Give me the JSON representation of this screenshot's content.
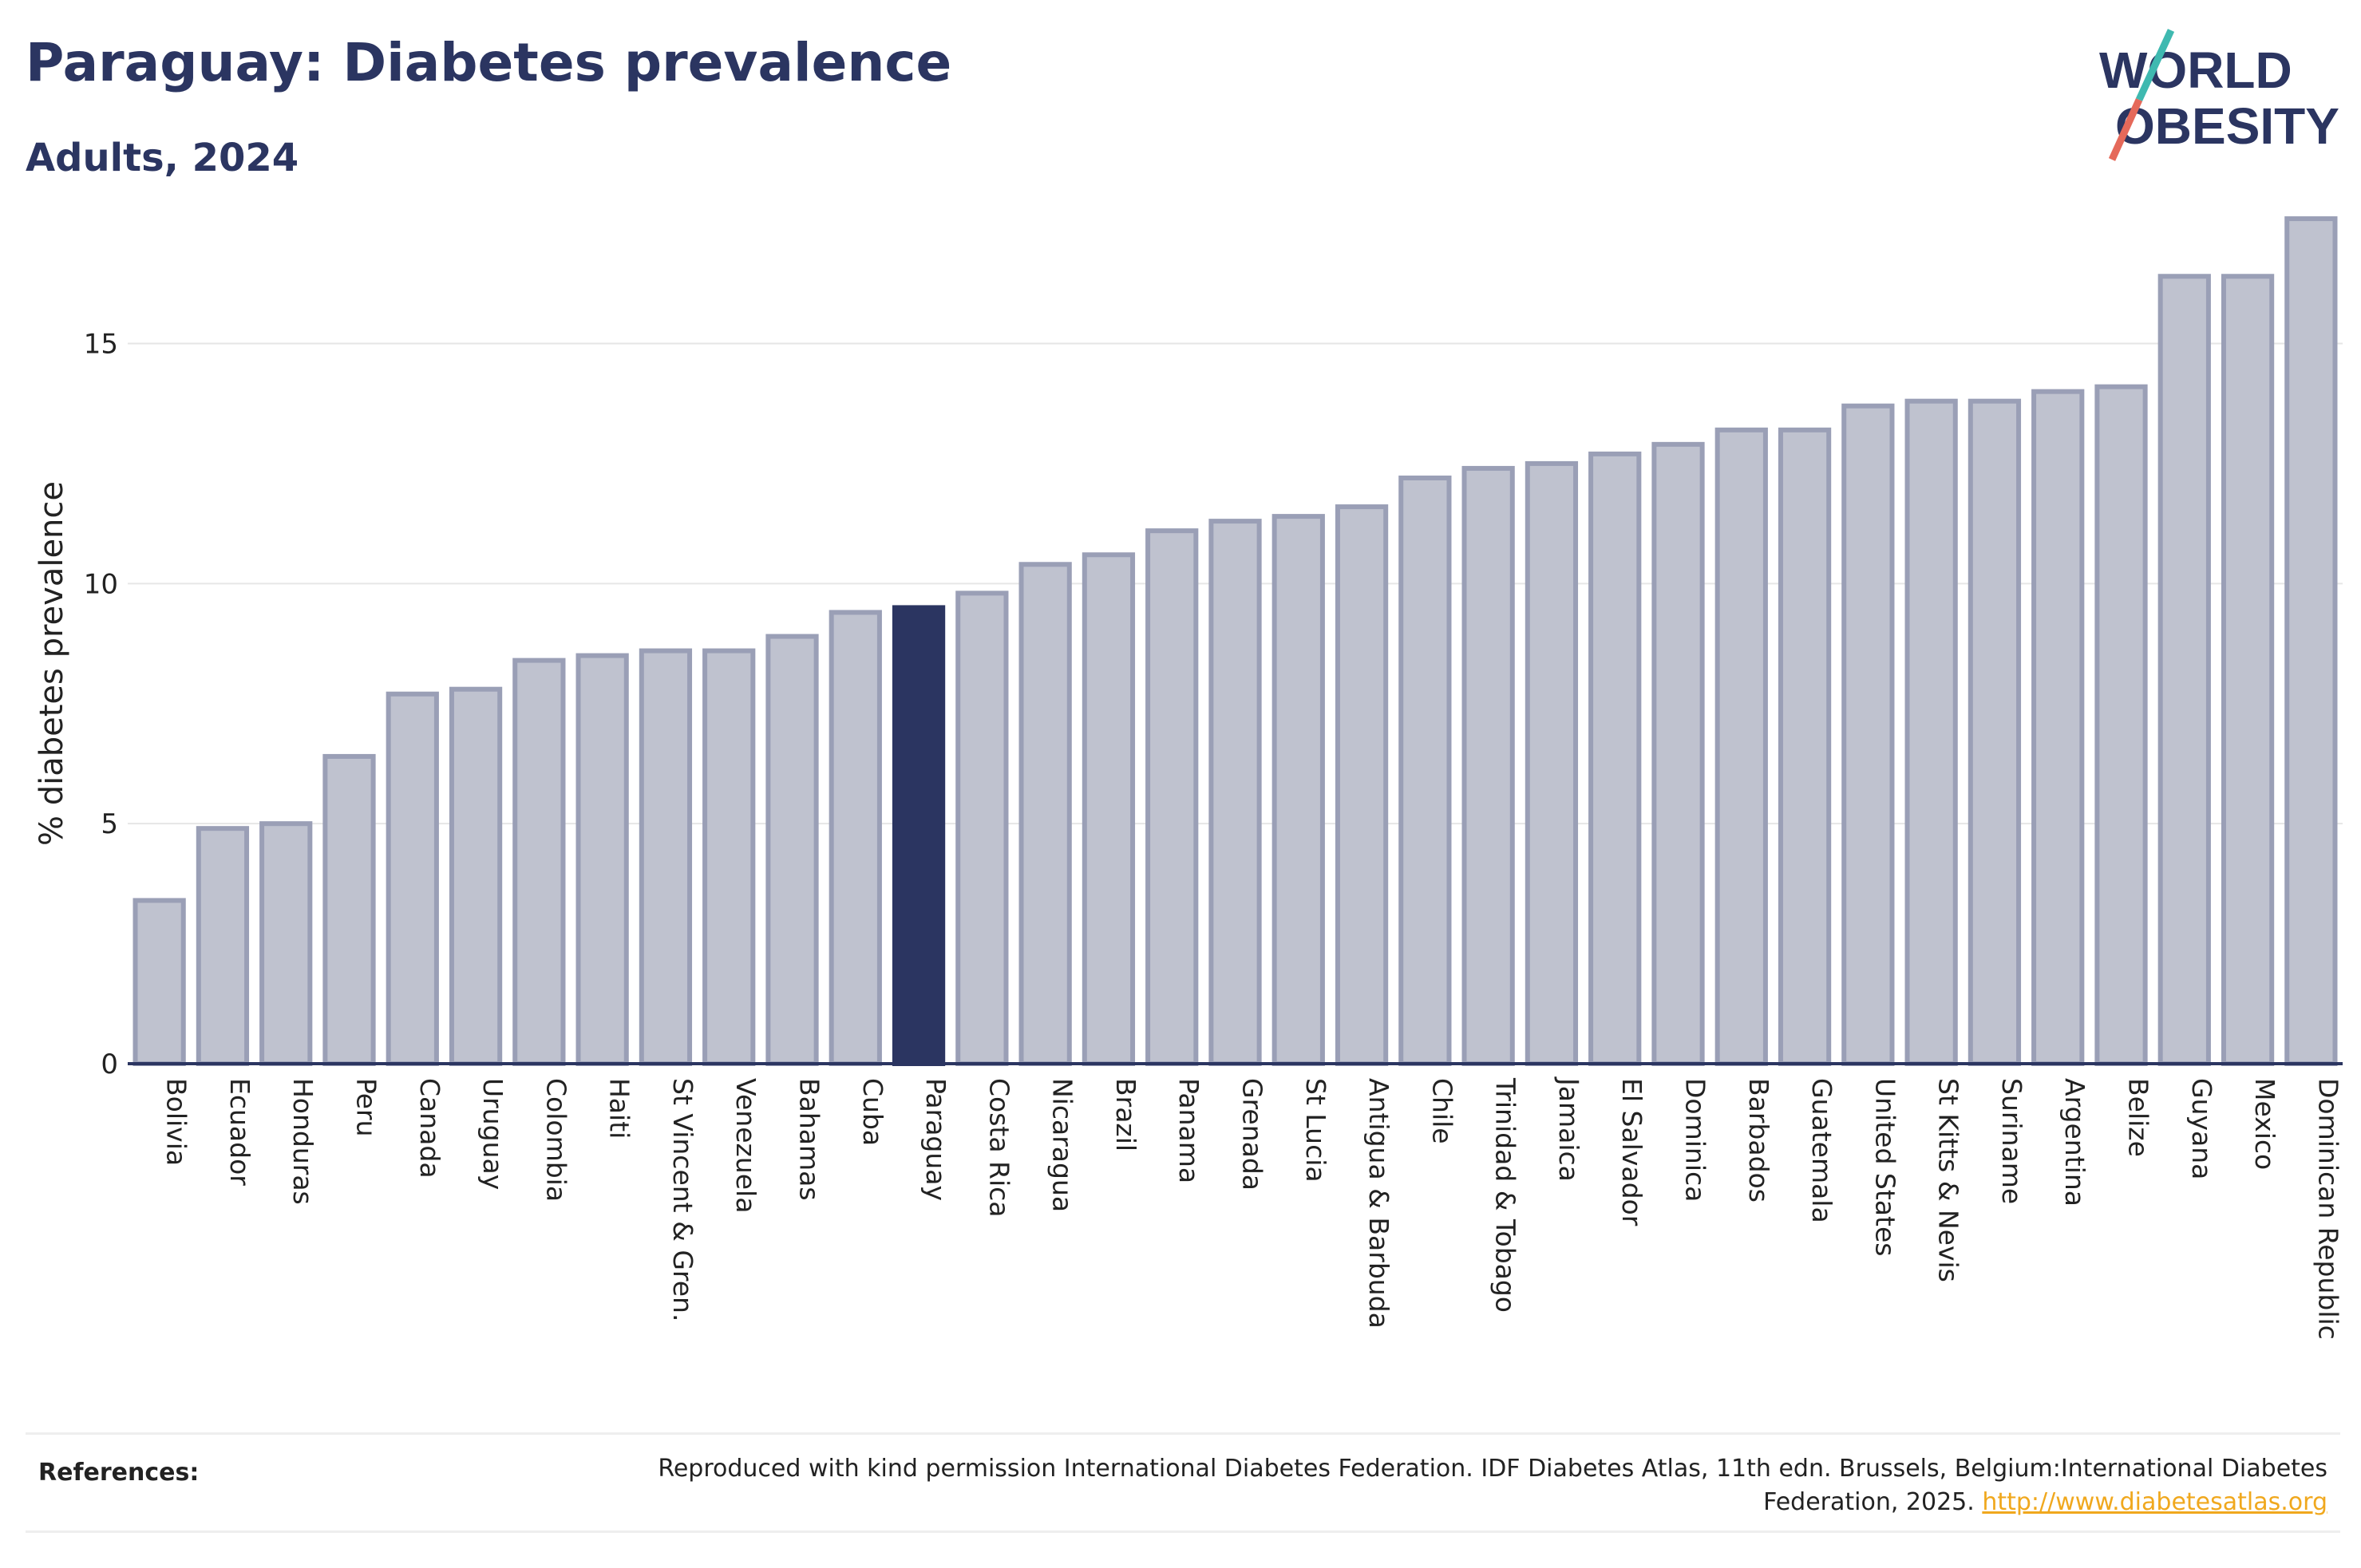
{
  "header": {
    "title": "Paraguay: Diabetes prevalence",
    "subtitle": "Adults, 2024"
  },
  "logo": {
    "line1": "WORLD",
    "line2": "OBESITY",
    "colors": {
      "text": "#2b3561",
      "slash_teal": "#3fb9b0",
      "slash_red": "#e5695a"
    }
  },
  "colors": {
    "bar": "#bfc2cf",
    "bar_border": "#9a9fb6",
    "highlight": "#2b3561",
    "grid": "#e6e6e6",
    "axis": "#2b3561"
  },
  "chart_data": {
    "type": "bar",
    "ylabel": "% diabetes prevalence",
    "xlabel": "",
    "ylim": [
      0,
      18
    ],
    "yticks": [
      0,
      5,
      10,
      15
    ],
    "grid": true,
    "highlight": "Paraguay",
    "categories": [
      "Bolivia",
      "Ecuador",
      "Honduras",
      "Peru",
      "Canada",
      "Uruguay",
      "Colombia",
      "Haiti",
      "St Vincent & Gren.",
      "Venezuela",
      "Bahamas",
      "Cuba",
      "Paraguay",
      "Costa Rica",
      "Nicaragua",
      "Brazil",
      "Panama",
      "Grenada",
      "St Lucia",
      "Antigua & Barbuda",
      "Chile",
      "Trinidad & Tobago",
      "Jamaica",
      "El Salvador",
      "Dominica",
      "Barbados",
      "Guatemala",
      "United States",
      "St Kitts & Nevis",
      "Suriname",
      "Argentina",
      "Belize",
      "Guyana",
      "Mexico",
      "Dominican Republic"
    ],
    "values": [
      3.4,
      4.9,
      5.0,
      6.4,
      7.7,
      7.8,
      8.4,
      8.5,
      8.6,
      8.6,
      8.9,
      9.4,
      9.5,
      9.8,
      10.4,
      10.6,
      11.1,
      11.3,
      11.4,
      11.6,
      12.2,
      12.4,
      12.5,
      12.7,
      12.9,
      13.2,
      13.2,
      13.7,
      13.8,
      13.8,
      14.0,
      14.1,
      16.4,
      16.4,
      17.6
    ]
  },
  "references": {
    "label": "References:",
    "text": "Reproduced with kind permission International Diabetes Federation. IDF Diabetes Atlas, 11th edn. Brussels, Belgium:International Diabetes Federation, 2025.",
    "link": "http://www.diabetesatlas.org"
  }
}
